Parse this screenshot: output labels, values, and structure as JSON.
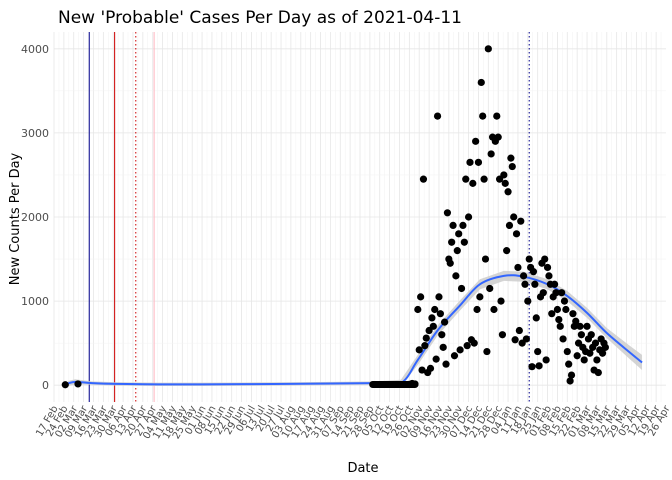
{
  "chart_data": {
    "type": "scatter",
    "title": "New 'Probable' Cases Per Day as of 2021-04-11",
    "xlabel": "Date",
    "ylabel": "New Counts Per Day",
    "ylim": [
      -200,
      4200
    ],
    "yticks": [
      0,
      1000,
      2000,
      3000,
      4000
    ],
    "x_date_range": [
      "2020-02-17",
      "2021-04-26"
    ],
    "xticks": [
      "17 Feb",
      "24 Feb",
      "02 Mar",
      "09 Mar",
      "16 Mar",
      "23 Mar",
      "30 Mar",
      "06 Apr",
      "13 Apr",
      "20 Apr",
      "27 Apr",
      "04 May",
      "11 May",
      "18 May",
      "25 May",
      "01 Jun",
      "08 Jun",
      "15 Jun",
      "22 Jun",
      "29 Jun",
      "06 Jul",
      "13 Jul",
      "20 Jul",
      "27 Jul",
      "03 Aug",
      "10 Aug",
      "17 Aug",
      "24 Aug",
      "31 Aug",
      "07 Sep",
      "14 Sep",
      "21 Sep",
      "28 Sep",
      "05 Oct",
      "12 Oct",
      "19 Oct",
      "26 Oct",
      "02 Nov",
      "09 Nov",
      "16 Nov",
      "23 Nov",
      "30 Nov",
      "07 Dec",
      "14 Dec",
      "21 Dec",
      "28 Dec",
      "04 Jan",
      "11 Jan",
      "18 Jan",
      "25 Jan",
      "01 Feb",
      "08 Feb",
      "15 Feb",
      "22 Feb",
      "01 Mar",
      "08 Mar",
      "15 Mar",
      "22 Mar",
      "29 Mar",
      "05 Apr",
      "12 Apr",
      "19 Apr",
      "26 Apr"
    ],
    "vlines": [
      {
        "date": "2020-03-13",
        "color": "#00008b",
        "style": "solid"
      },
      {
        "date": "2020-03-31",
        "color": "#cc0000",
        "style": "solid"
      },
      {
        "date": "2020-04-15",
        "color": "#cc0000",
        "style": "dotted"
      },
      {
        "date": "2020-04-28",
        "color": "#ffb6c1",
        "style": "solid"
      },
      {
        "date": "2021-01-19",
        "color": "#00008b",
        "style": "dotted"
      }
    ],
    "smooth": {
      "color": "#3366ff",
      "band_color": "#cccccc",
      "dates": [
        "2020-02-27",
        "2020-03-03",
        "2020-03-15",
        "2020-04-01",
        "2020-05-01",
        "2020-06-01",
        "2020-07-01",
        "2020-08-01",
        "2020-09-01",
        "2020-10-01",
        "2020-10-20",
        "2020-11-01",
        "2020-11-15",
        "2020-12-01",
        "2020-12-15",
        "2021-01-01",
        "2021-01-15",
        "2021-02-01",
        "2021-02-15",
        "2021-03-01",
        "2021-03-15",
        "2021-04-01",
        "2021-04-09"
      ],
      "values": [
        20,
        40,
        25,
        15,
        10,
        10,
        12,
        15,
        20,
        25,
        25,
        300,
        650,
        950,
        1200,
        1300,
        1290,
        1200,
        1060,
        860,
        620,
        380,
        270
      ],
      "band": [
        30,
        30,
        20,
        20,
        20,
        20,
        20,
        20,
        20,
        20,
        40,
        60,
        60,
        60,
        60,
        60,
        60,
        60,
        60,
        60,
        60,
        80,
        90
      ]
    },
    "series": [
      {
        "name": "new probable cases",
        "color": "#000000",
        "points": [
          [
            "2020-02-25",
            5
          ],
          [
            "2020-03-05",
            15
          ],
          [
            "2020-10-26",
            10
          ],
          [
            "2020-10-28",
            20
          ],
          [
            "2020-10-30",
            15
          ],
          [
            "2020-11-01",
            900
          ],
          [
            "2020-11-02",
            420
          ],
          [
            "2020-11-03",
            1050
          ],
          [
            "2020-11-04",
            180
          ],
          [
            "2020-11-05",
            2450
          ],
          [
            "2020-11-06",
            470
          ],
          [
            "2020-11-07",
            560
          ],
          [
            "2020-11-08",
            150
          ],
          [
            "2020-11-09",
            650
          ],
          [
            "2020-11-10",
            200
          ],
          [
            "2020-11-11",
            800
          ],
          [
            "2020-11-12",
            700
          ],
          [
            "2020-11-13",
            900
          ],
          [
            "2020-11-14",
            310
          ],
          [
            "2020-11-15",
            3200
          ],
          [
            "2020-11-16",
            1050
          ],
          [
            "2020-11-17",
            850
          ],
          [
            "2020-11-18",
            600
          ],
          [
            "2020-11-19",
            450
          ],
          [
            "2020-11-20",
            750
          ],
          [
            "2020-11-21",
            250
          ],
          [
            "2020-11-22",
            2050
          ],
          [
            "2020-11-23",
            1500
          ],
          [
            "2020-11-24",
            1450
          ],
          [
            "2020-11-25",
            1700
          ],
          [
            "2020-11-26",
            1900
          ],
          [
            "2020-11-27",
            350
          ],
          [
            "2020-11-28",
            1300
          ],
          [
            "2020-11-29",
            1600
          ],
          [
            "2020-11-30",
            1800
          ],
          [
            "2020-12-01",
            420
          ],
          [
            "2020-12-02",
            1150
          ],
          [
            "2020-12-03",
            1900
          ],
          [
            "2020-12-04",
            1700
          ],
          [
            "2020-12-05",
            2450
          ],
          [
            "2020-12-06",
            470
          ],
          [
            "2020-12-07",
            2000
          ],
          [
            "2020-12-08",
            2650
          ],
          [
            "2020-12-09",
            540
          ],
          [
            "2020-12-10",
            2400
          ],
          [
            "2020-12-11",
            500
          ],
          [
            "2020-12-12",
            2900
          ],
          [
            "2020-12-13",
            900
          ],
          [
            "2020-12-14",
            2650
          ],
          [
            "2020-12-15",
            1050
          ],
          [
            "2020-12-16",
            3600
          ],
          [
            "2020-12-17",
            3200
          ],
          [
            "2020-12-18",
            2450
          ],
          [
            "2020-12-19",
            1500
          ],
          [
            "2020-12-20",
            400
          ],
          [
            "2020-12-21",
            4000
          ],
          [
            "2020-12-22",
            1150
          ],
          [
            "2020-12-23",
            2750
          ],
          [
            "2020-12-24",
            2950
          ],
          [
            "2020-12-25",
            900
          ],
          [
            "2020-12-26",
            2900
          ],
          [
            "2020-12-27",
            3200
          ],
          [
            "2020-12-28",
            2950
          ],
          [
            "2020-12-29",
            2450
          ],
          [
            "2020-12-30",
            1000
          ],
          [
            "2020-12-31",
            600
          ],
          [
            "2021-01-01",
            2500
          ],
          [
            "2021-01-02",
            2400
          ],
          [
            "2021-01-03",
            1600
          ],
          [
            "2021-01-04",
            2300
          ],
          [
            "2021-01-05",
            1900
          ],
          [
            "2021-01-06",
            2700
          ],
          [
            "2021-01-07",
            2600
          ],
          [
            "2021-01-08",
            2000
          ],
          [
            "2021-01-09",
            540
          ],
          [
            "2021-01-10",
            1800
          ],
          [
            "2021-01-11",
            1400
          ],
          [
            "2021-01-12",
            650
          ],
          [
            "2021-01-13",
            1950
          ],
          [
            "2021-01-14",
            500
          ],
          [
            "2021-01-15",
            1300
          ],
          [
            "2021-01-16",
            1200
          ],
          [
            "2021-01-17",
            550
          ],
          [
            "2021-01-18",
            1000
          ],
          [
            "2021-01-19",
            1500
          ],
          [
            "2021-01-20",
            1400
          ],
          [
            "2021-01-21",
            220
          ],
          [
            "2021-01-22",
            1350
          ],
          [
            "2021-01-23",
            1200
          ],
          [
            "2021-01-24",
            800
          ],
          [
            "2021-01-25",
            400
          ],
          [
            "2021-01-26",
            230
          ],
          [
            "2021-01-27",
            1050
          ],
          [
            "2021-01-28",
            1450
          ],
          [
            "2021-01-29",
            1100
          ],
          [
            "2021-01-30",
            1500
          ],
          [
            "2021-01-31",
            300
          ],
          [
            "2021-02-01",
            1400
          ],
          [
            "2021-02-02",
            1300
          ],
          [
            "2021-02-03",
            1200
          ],
          [
            "2021-02-04",
            850
          ],
          [
            "2021-02-05",
            1050
          ],
          [
            "2021-02-06",
            1200
          ],
          [
            "2021-02-07",
            1100
          ],
          [
            "2021-02-08",
            900
          ],
          [
            "2021-02-09",
            780
          ],
          [
            "2021-02-10",
            700
          ],
          [
            "2021-02-11",
            1100
          ],
          [
            "2021-02-12",
            550
          ],
          [
            "2021-02-13",
            1000
          ],
          [
            "2021-02-14",
            900
          ],
          [
            "2021-02-15",
            400
          ],
          [
            "2021-02-16",
            250
          ],
          [
            "2021-02-17",
            50
          ],
          [
            "2021-02-18",
            120
          ],
          [
            "2021-02-19",
            850
          ],
          [
            "2021-02-20",
            700
          ],
          [
            "2021-02-21",
            760
          ],
          [
            "2021-02-22",
            350
          ],
          [
            "2021-02-23",
            500
          ],
          [
            "2021-02-24",
            700
          ],
          [
            "2021-02-25",
            600
          ],
          [
            "2021-02-26",
            450
          ],
          [
            "2021-02-27",
            300
          ],
          [
            "2021-02-28",
            400
          ],
          [
            "2021-03-01",
            700
          ],
          [
            "2021-03-02",
            550
          ],
          [
            "2021-03-03",
            380
          ],
          [
            "2021-03-04",
            600
          ],
          [
            "2021-03-05",
            450
          ],
          [
            "2021-03-06",
            180
          ],
          [
            "2021-03-07",
            500
          ],
          [
            "2021-03-08",
            300
          ],
          [
            "2021-03-09",
            150
          ],
          [
            "2021-03-10",
            420
          ],
          [
            "2021-03-11",
            550
          ],
          [
            "2021-03-12",
            380
          ],
          [
            "2021-03-13",
            500
          ],
          [
            "2021-03-14",
            450
          ]
        ]
      }
    ]
  }
}
